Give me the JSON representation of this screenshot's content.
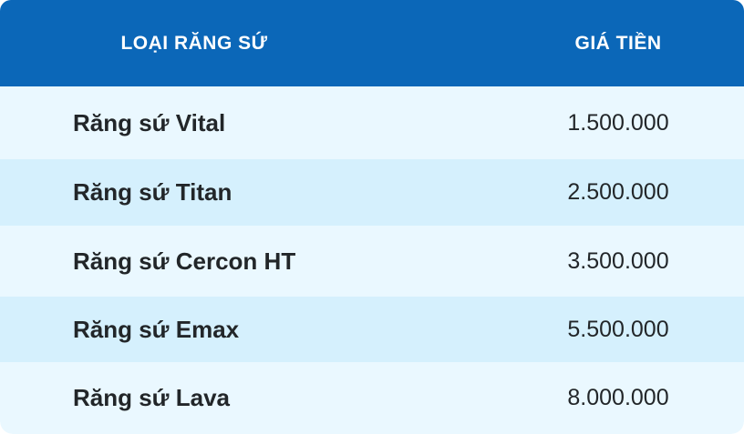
{
  "colors": {
    "header_bg": "#0b67b8",
    "row_light": "#eaf8ff",
    "row_dark": "#d5f0fd"
  },
  "header": {
    "type_label": "LOẠI RĂNG SỨ",
    "price_label": "GIÁ TIỀN"
  },
  "rows": [
    {
      "name": "Răng sứ Vital",
      "price": "1.500.000"
    },
    {
      "name": "Răng sứ Titan",
      "price": "2.500.000"
    },
    {
      "name": "Răng sứ Cercon HT",
      "price": "3.500.000"
    },
    {
      "name": "Răng sứ Emax",
      "price": "5.500.000"
    },
    {
      "name": "Răng sứ Lava",
      "price": "8.000.000"
    }
  ]
}
